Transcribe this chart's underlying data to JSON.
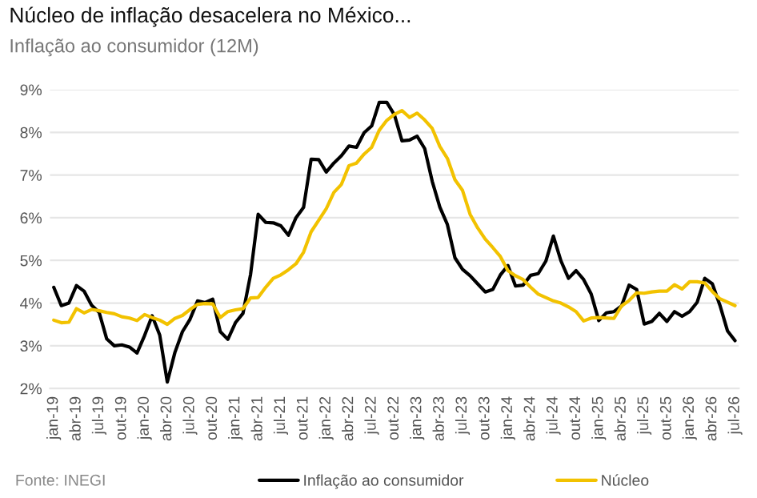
{
  "chart_data": {
    "type": "line",
    "title": "Núcleo de inflação desacelera no México...",
    "subtitle": "Inflação ao consumidor (12M)",
    "categories": [
      "jan-19",
      null,
      null,
      "abr-19",
      null,
      null,
      "jul-19",
      null,
      null,
      "out-19",
      null,
      null,
      "jan-20",
      null,
      null,
      "abr-20",
      null,
      null,
      "jul-20",
      null,
      null,
      "out-20",
      null,
      null,
      "jan-21",
      null,
      null,
      "abr-21",
      null,
      null,
      "jul-21",
      null,
      null,
      "out-21",
      null,
      null,
      "jan-22",
      null,
      null,
      "abr-22",
      null,
      null,
      "jul-22",
      null,
      null,
      "out-22",
      null,
      null,
      "jan-23",
      null,
      null,
      "abr-23",
      null,
      null,
      "jul-23",
      null,
      null,
      "out-23",
      null,
      null,
      "jan-24",
      null,
      null,
      "abr-24",
      null,
      null,
      "jul-24",
      null,
      null,
      "out-24",
      null,
      null,
      "jan-25",
      null,
      null,
      "abr-25",
      null,
      null,
      "jul-25",
      null,
      null,
      "out-25",
      null,
      null,
      "jan-26",
      null,
      null,
      "abr-26",
      null,
      null,
      "jul-26"
    ],
    "series": [
      {
        "name": "Inflação ao consumidor",
        "color": "#000000",
        "values": [
          4.37,
          3.94,
          4.0,
          4.41,
          4.28,
          3.95,
          3.78,
          3.16,
          3.0,
          3.02,
          2.97,
          2.83,
          3.24,
          3.7,
          3.25,
          2.15,
          2.84,
          3.33,
          3.62,
          4.05,
          4.01,
          4.09,
          3.33,
          3.15,
          3.54,
          3.76,
          4.67,
          6.08,
          5.89,
          5.88,
          5.81,
          5.59,
          6.0,
          6.24,
          7.37,
          7.36,
          7.07,
          7.28,
          7.45,
          7.68,
          7.65,
          7.99,
          8.15,
          8.7,
          8.7,
          8.41,
          7.8,
          7.82,
          7.91,
          7.62,
          6.85,
          6.25,
          5.84,
          5.06,
          4.79,
          4.64,
          4.45,
          4.26,
          4.32,
          4.66,
          4.88,
          4.4,
          4.42,
          4.65,
          4.69,
          4.98,
          5.57,
          4.99,
          4.58,
          4.76,
          4.55,
          4.21,
          3.59,
          3.77,
          3.8,
          3.93,
          4.42,
          4.32,
          3.51,
          3.57,
          3.76,
          3.57,
          3.8,
          3.69,
          3.8,
          4.02,
          4.58,
          4.45,
          3.95,
          3.35,
          3.12
        ]
      },
      {
        "name": "Núcleo",
        "color": "#f2c200",
        "values": [
          3.6,
          3.54,
          3.55,
          3.87,
          3.77,
          3.85,
          3.82,
          3.78,
          3.75,
          3.68,
          3.65,
          3.59,
          3.73,
          3.66,
          3.6,
          3.5,
          3.64,
          3.71,
          3.85,
          3.97,
          3.99,
          3.98,
          3.66,
          3.8,
          3.84,
          3.87,
          4.12,
          4.13,
          4.37,
          4.58,
          4.66,
          4.78,
          4.92,
          5.19,
          5.67,
          5.94,
          6.21,
          6.59,
          6.78,
          7.22,
          7.28,
          7.49,
          7.65,
          8.05,
          8.28,
          8.42,
          8.51,
          8.35,
          8.45,
          8.29,
          8.09,
          7.67,
          7.39,
          6.89,
          6.64,
          6.08,
          5.76,
          5.5,
          5.3,
          5.09,
          4.76,
          4.64,
          4.55,
          4.37,
          4.21,
          4.13,
          4.05,
          4.0,
          3.91,
          3.8,
          3.58,
          3.65,
          3.66,
          3.65,
          3.64,
          3.93,
          4.06,
          4.24,
          4.23,
          4.26,
          4.28,
          4.28,
          4.43,
          4.33,
          4.5,
          4.5,
          4.47,
          4.27,
          4.1,
          4.02,
          3.94
        ]
      }
    ],
    "ylim": [
      2,
      9
    ],
    "yticks": [
      {
        "value": 2,
        "label": "2%"
      },
      {
        "value": 3,
        "label": "3%"
      },
      {
        "value": 4,
        "label": "4%"
      },
      {
        "value": 5,
        "label": "5%"
      },
      {
        "value": 6,
        "label": "6%"
      },
      {
        "value": 7,
        "label": "7%"
      },
      {
        "value": 8,
        "label": "8%"
      },
      {
        "value": 9,
        "label": "9%"
      }
    ],
    "grid": "y",
    "legend": "bottom",
    "marker": "none",
    "line_style": "solid",
    "annotations": [
      "Fonte: INEGI"
    ]
  }
}
